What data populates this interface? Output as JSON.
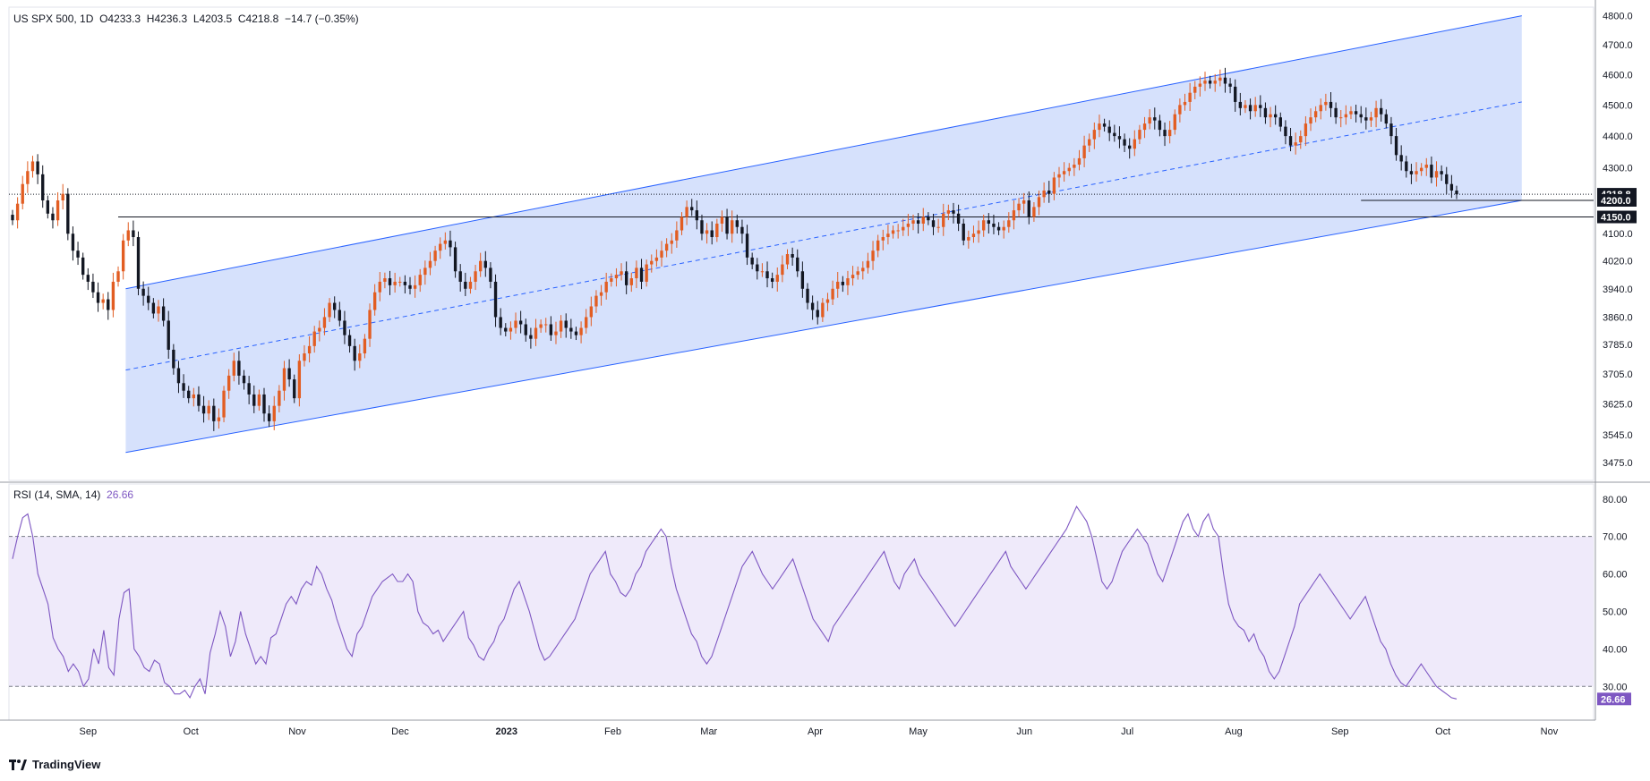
{
  "header": {
    "symbol": "US SPX 500",
    "interval": "1D",
    "open": "O4233.3",
    "high": "H4236.3",
    "low": "L4203.5",
    "close": "C4218.8",
    "change": "−14.7 (−0.35%)"
  },
  "rsi_header": {
    "label": "RSI (14, SMA, 14)",
    "value": "26.66"
  },
  "footer": {
    "brand": "TradingView"
  },
  "colors": {
    "up": "#e25d22",
    "down": "#131722",
    "channel_line": "#2962ff",
    "channel_fill": "#cfdcfb",
    "rsi_line": "#7e57c2",
    "rsi_band": "#efeafa",
    "grid": "#e0e3eb"
  },
  "chart_data": [
    {
      "type": "candlestick",
      "title": "US SPX 500, 1D",
      "x_tick_labels": [
        "Sep",
        "Oct",
        "Nov",
        "Dec",
        "2023",
        "Feb",
        "Mar",
        "Apr",
        "May",
        "Jun",
        "Jul",
        "Aug",
        "Sep",
        "Oct",
        "Nov"
      ],
      "y_tick_labels": [
        "4800.0",
        "4700.0",
        "4600.0",
        "4500.0",
        "4400.0",
        "4300.0",
        "4200.0",
        "4100.0",
        "4020.0",
        "3940.0",
        "3860.0",
        "3785.0",
        "3705.0",
        "3625.0",
        "3545.0",
        "3475.0"
      ],
      "ylim": [
        3430,
        4830
      ],
      "scale": "log",
      "price_tags": [
        {
          "value": 4218.8,
          "label": "4218.8"
        },
        {
          "value": 4200.0,
          "label": "4200.0"
        },
        {
          "value": 4150.0,
          "label": "4150.0"
        }
      ],
      "horizontal_levels": [
        4218.8,
        4200.0,
        4150.0
      ],
      "closes_approx": [
        4140,
        4190,
        4250,
        4290,
        4320,
        4280,
        4200,
        4160,
        4140,
        4200,
        4220,
        4100,
        4050,
        4030,
        3980,
        3960,
        3930,
        3900,
        3910,
        3880,
        3960,
        3990,
        4080,
        4110,
        4090,
        3940,
        3920,
        3900,
        3870,
        3890,
        3850,
        3770,
        3720,
        3680,
        3660,
        3640,
        3650,
        3620,
        3600,
        3620,
        3580,
        3590,
        3660,
        3700,
        3740,
        3700,
        3680,
        3650,
        3620,
        3650,
        3600,
        3580,
        3620,
        3660,
        3720,
        3690,
        3640,
        3740,
        3760,
        3780,
        3820,
        3830,
        3860,
        3900,
        3880,
        3850,
        3810,
        3780,
        3740,
        3760,
        3800,
        3880,
        3930,
        3960,
        3970,
        3950,
        3960,
        3960,
        3950,
        3940,
        3950,
        3980,
        4000,
        4020,
        4050,
        4070,
        4080,
        4060,
        3990,
        3960,
        3940,
        3960,
        3990,
        4020,
        4000,
        3960,
        3860,
        3830,
        3820,
        3830,
        3850,
        3840,
        3810,
        3800,
        3830,
        3840,
        3840,
        3810,
        3820,
        3850,
        3830,
        3820,
        3810,
        3830,
        3860,
        3890,
        3920,
        3930,
        3960,
        3970,
        3980,
        3990,
        3950,
        3970,
        4000,
        3960,
        4010,
        4020,
        4030,
        4050,
        4070,
        4080,
        4110,
        4150,
        4180,
        4170,
        4140,
        4100,
        4110,
        4090,
        4130,
        4150,
        4100,
        4140,
        4120,
        4100,
        4030,
        4010,
        3990,
        3990,
        3970,
        3960,
        3980,
        4010,
        4040,
        4030,
        3990,
        3940,
        3900,
        3880,
        3860,
        3900,
        3910,
        3940,
        3960,
        3950,
        3970,
        3980,
        3990,
        4000,
        4020,
        4050,
        4080,
        4090,
        4100,
        4110,
        4110,
        4120,
        4130,
        4140,
        4130,
        4150,
        4140,
        4120,
        4120,
        4160,
        4170,
        4160,
        4130,
        4080,
        4090,
        4100,
        4110,
        4140,
        4130,
        4120,
        4110,
        4120,
        4140,
        4170,
        4190,
        4200,
        4150,
        4180,
        4210,
        4230,
        4220,
        4270,
        4280,
        4290,
        4300,
        4310,
        4330,
        4370,
        4390,
        4420,
        4440,
        4430,
        4410,
        4400,
        4390,
        4370,
        4360,
        4390,
        4420,
        4440,
        4460,
        4450,
        4420,
        4400,
        4420,
        4470,
        4500,
        4510,
        4540,
        4560,
        4570,
        4580,
        4570,
        4580,
        4590,
        4570,
        4560,
        4510,
        4490,
        4500,
        4480,
        4500,
        4490,
        4460,
        4470,
        4460,
        4430,
        4400,
        4370,
        4380,
        4400,
        4440,
        4460,
        4480,
        4500,
        4510,
        4490,
        4460,
        4460,
        4470,
        4480,
        4470,
        4460,
        4450,
        4460,
        4490,
        4470,
        4440,
        4400,
        4340,
        4320,
        4290,
        4280,
        4290,
        4300,
        4310,
        4270,
        4290,
        4280,
        4250,
        4230,
        4218.8
      ],
      "series": [
        {
          "name": "regression channel upper",
          "start": {
            "x": "2022-09-12",
            "y": 3940
          },
          "end": {
            "x": "2023-10-24",
            "y": 4800
          }
        },
        {
          "name": "regression channel mid",
          "start": {
            "x": "2022-09-12",
            "y": 3715
          },
          "end": {
            "x": "2023-10-24",
            "y": 4510
          }
        },
        {
          "name": "regression channel lower",
          "start": {
            "x": "2022-09-12",
            "y": 3500
          },
          "end": {
            "x": "2023-10-24",
            "y": 4200
          }
        }
      ],
      "grid": true
    },
    {
      "type": "line",
      "title": "RSI (14, SMA, 14)",
      "y_tick_labels": [
        "80.00",
        "70.00",
        "60.00",
        "50.00",
        "40.00",
        "30.00"
      ],
      "ylim": [
        21,
        84
      ],
      "bands": {
        "upper": 70,
        "lower": 30
      },
      "last_value": 26.66,
      "last_label": "26.66",
      "series": [
        {
          "name": "RSI",
          "values": [
            64,
            70,
            75,
            76,
            70,
            60,
            56,
            52,
            43,
            40,
            38,
            34,
            36,
            34,
            30,
            32,
            40,
            36,
            45,
            35,
            33,
            48,
            55,
            56,
            40,
            38,
            35,
            34,
            37,
            36,
            31,
            30,
            28,
            28,
            29,
            27,
            30,
            32,
            28,
            39,
            44,
            50,
            46,
            38,
            42,
            50,
            44,
            40,
            36,
            38,
            36,
            43,
            44,
            48,
            52,
            54,
            52,
            56,
            58,
            57,
            62,
            60,
            56,
            53,
            48,
            44,
            40,
            38,
            44,
            46,
            50,
            54,
            56,
            58,
            59,
            60,
            58,
            58,
            60,
            58,
            50,
            47,
            46,
            44,
            45,
            42,
            44,
            46,
            48,
            50,
            43,
            41,
            38,
            37,
            40,
            42,
            46,
            48,
            52,
            56,
            58,
            54,
            50,
            45,
            40,
            37,
            38,
            40,
            42,
            44,
            46,
            48,
            52,
            56,
            60,
            62,
            64,
            66,
            60,
            58,
            55,
            54,
            56,
            60,
            62,
            66,
            68,
            70,
            72,
            70,
            62,
            56,
            52,
            48,
            44,
            42,
            38,
            36,
            38,
            42,
            46,
            50,
            54,
            58,
            62,
            64,
            66,
            63,
            60,
            58,
            56,
            58,
            60,
            62,
            64,
            60,
            56,
            52,
            48,
            46,
            44,
            42,
            46,
            48,
            50,
            52,
            54,
            56,
            58,
            60,
            62,
            64,
            66,
            62,
            58,
            56,
            60,
            62,
            64,
            60,
            58,
            56,
            54,
            52,
            50,
            48,
            46,
            48,
            50,
            52,
            54,
            56,
            58,
            60,
            62,
            64,
            66,
            62,
            60,
            58,
            56,
            58,
            60,
            62,
            64,
            66,
            68,
            70,
            72,
            75,
            78,
            76,
            74,
            70,
            64,
            58,
            56,
            58,
            62,
            66,
            68,
            70,
            72,
            70,
            68,
            64,
            60,
            58,
            62,
            66,
            70,
            74,
            76,
            72,
            70,
            74,
            76,
            72,
            70,
            60,
            52,
            48,
            46,
            45,
            42,
            44,
            40,
            38,
            34,
            32,
            34,
            38,
            42,
            46,
            52,
            54,
            56,
            58,
            60,
            58,
            56,
            54,
            52,
            50,
            48,
            50,
            52,
            54,
            50,
            46,
            42,
            40,
            36,
            33,
            31,
            30,
            32,
            34,
            36,
            34,
            32,
            30,
            29,
            28,
            27,
            26.66
          ]
        }
      ],
      "grid": true
    }
  ]
}
